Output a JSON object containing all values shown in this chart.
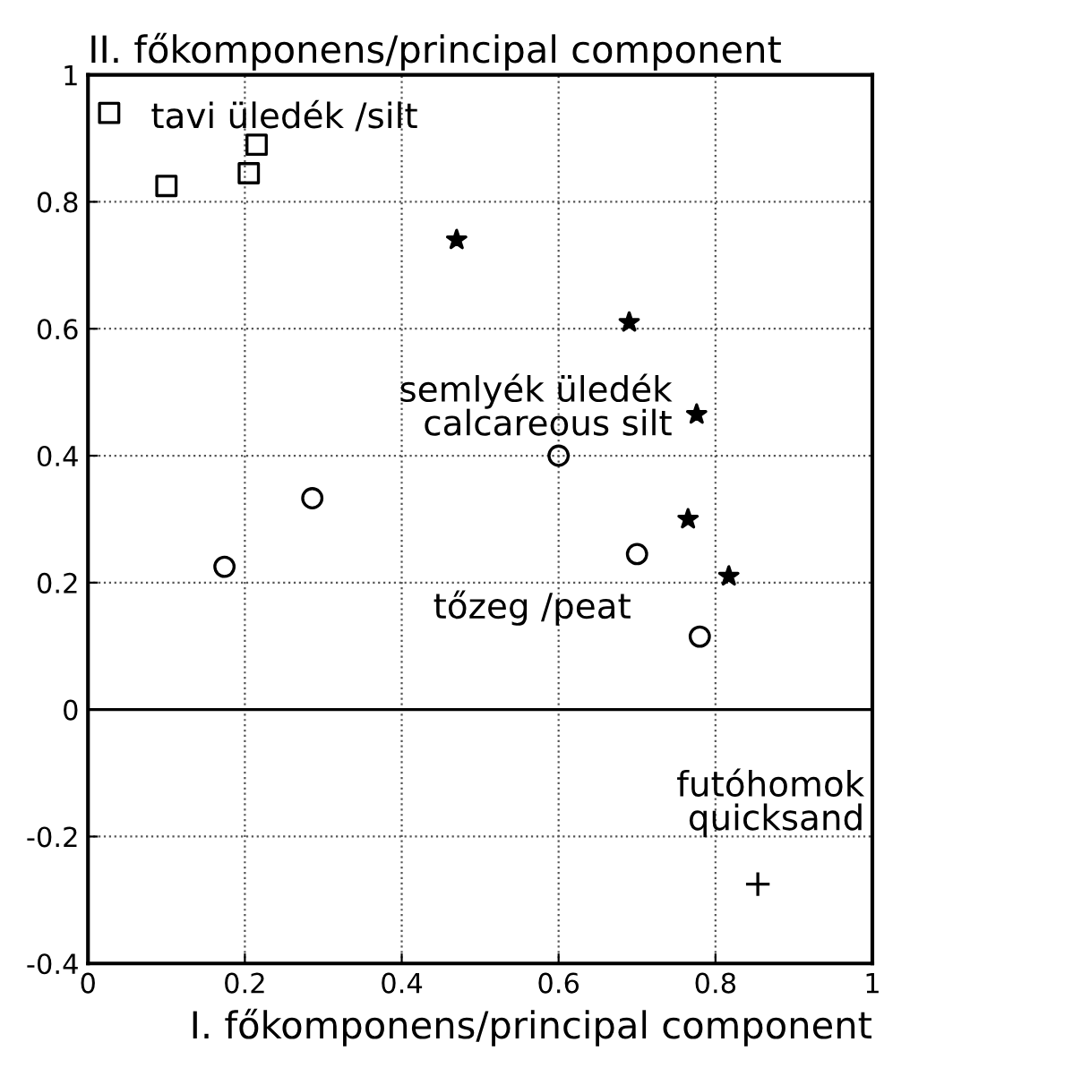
{
  "chart_data": {
    "type": "scatter",
    "xlabel": "I. főkomponens/principal component",
    "ylabel": "II. főkomponens/principal component",
    "xlim": [
      0,
      1
    ],
    "xticks": [
      0,
      0.2,
      0.4,
      0.6,
      0.8,
      1
    ],
    "ylim": [
      -0.4,
      1
    ],
    "yticks": [
      -0.4,
      -0.2,
      0,
      0.2,
      0.4,
      0.6,
      0.8,
      1
    ],
    "grid": true,
    "ref_lines": [
      {
        "axis": "y",
        "value": 0,
        "color": "#000000",
        "line_style": "solid"
      }
    ],
    "series": [
      {
        "name": "tavi üledék /silt",
        "color": "#000000",
        "marker": "square",
        "x": [
          0.027,
          0.1,
          0.205,
          0.215
        ],
        "values": [
          0.94,
          0.825,
          0.845,
          0.89
        ]
      },
      {
        "name": "semlyék üledék\ncalcareous silt",
        "color": "#000000",
        "marker": "star",
        "x": [
          0.47,
          0.69,
          0.776,
          0.765,
          0.817
        ],
        "values": [
          0.74,
          0.61,
          0.465,
          0.3,
          0.21
        ]
      },
      {
        "name": "tőzeg /peat",
        "color": "#000000",
        "marker": "circle",
        "x": [
          0.174,
          0.286,
          0.6,
          0.7,
          0.78
        ],
        "values": [
          0.225,
          0.333,
          0.4,
          0.245,
          0.115
        ]
      },
      {
        "name": "futóhomok\nquicksand",
        "color": "#000000",
        "marker": "cross",
        "x": [
          0.854
        ],
        "values": [
          -0.275
        ]
      }
    ]
  }
}
